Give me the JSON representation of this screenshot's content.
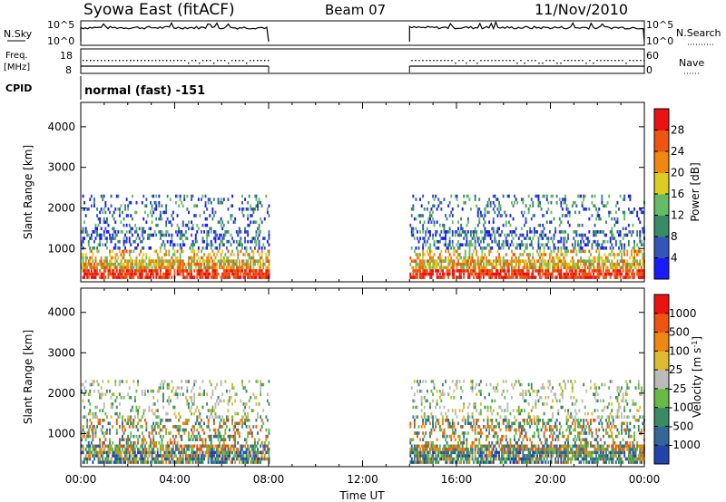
{
  "header": {
    "title": "Syowa East (fitACF)",
    "beam": "Beam 07",
    "date": "11/Nov/2010"
  },
  "panels": {
    "nsky": {
      "label": "N.Sky",
      "right_label": "N.Search",
      "left_ticks": [
        "10^5",
        "10^0"
      ],
      "right_ticks": [
        "10^5",
        "10^0"
      ]
    },
    "freq": {
      "label_line1": "Freq.",
      "label_line2": "[MHz]",
      "right_label": "Nave",
      "left_ticks": [
        "18",
        "8"
      ],
      "right_ticks": [
        "60",
        "0"
      ]
    },
    "cpid": {
      "label": "CPID",
      "value": "normal (fast) -151"
    }
  },
  "chart_data": [
    {
      "type": "heatmap",
      "name": "power",
      "ylabel": "Slant Range [km]",
      "ylim": [
        180,
        4600
      ],
      "yticks": [
        1000,
        2000,
        3000,
        4000
      ],
      "xlabel": "",
      "x_range_hours": [
        0,
        24
      ],
      "data_intervals_ut": [
        [
          "00:00",
          "08:00"
        ],
        [
          "14:00",
          "24:00"
        ]
      ],
      "colorbar": {
        "label": "Power [dB]",
        "ticks": [
          "4",
          "8",
          "12",
          "16",
          "20",
          "24",
          "28"
        ],
        "colors": [
          "#1a1aff",
          "#3355bb",
          "#3a8a66",
          "#66bb66",
          "#ddcc22",
          "#ee8811",
          "#ee5511",
          "#ee1111"
        ]
      }
    },
    {
      "type": "heatmap",
      "name": "velocity",
      "ylabel": "Slant Range [km]",
      "ylim": [
        180,
        4600
      ],
      "yticks": [
        1000,
        2000,
        3000,
        4000
      ],
      "xlabel": "Time UT",
      "xticks": [
        "00:00",
        "04:00",
        "08:00",
        "12:00",
        "16:00",
        "20:00",
        "00:00"
      ],
      "x_range_hours": [
        0,
        24
      ],
      "data_intervals_ut": [
        [
          "00:00",
          "08:00"
        ],
        [
          "14:00",
          "24:00"
        ]
      ],
      "colorbar": {
        "label": "Velocity [m s^-1]",
        "ticks": [
          "1000",
          "500",
          "100",
          "25",
          "-25",
          "-100",
          "-500",
          "-1000"
        ],
        "colors": [
          "#2244aa",
          "#336699",
          "#3a8a66",
          "#66bb44",
          "#bbbbbb",
          "#ddbb33",
          "#ee8811",
          "#ee5511",
          "#ee1111"
        ]
      }
    }
  ]
}
